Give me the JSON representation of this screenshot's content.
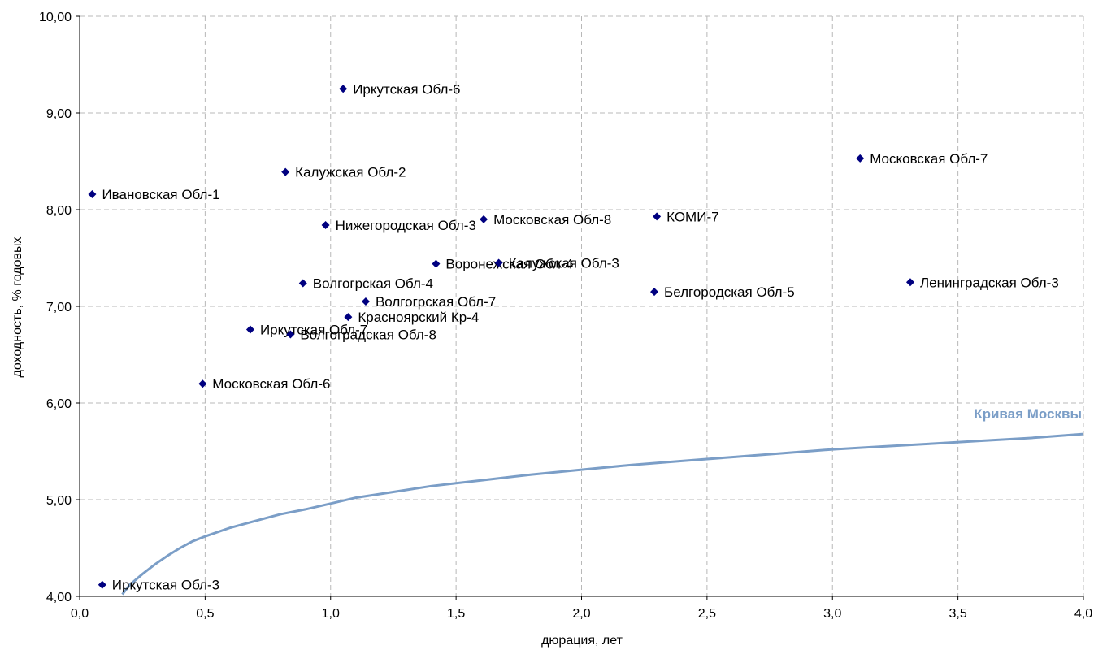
{
  "chart_data": {
    "type": "scatter",
    "xlabel": "дюрация, лет",
    "ylabel": "доходность, % годовых",
    "xlim": [
      0,
      4
    ],
    "ylim": [
      4,
      10
    ],
    "x_ticks": [
      "0,0",
      "0,5",
      "1,0",
      "1,5",
      "2,0",
      "2,5",
      "3,0",
      "3,5",
      "4,0"
    ],
    "y_ticks": [
      "4,00",
      "5,00",
      "6,00",
      "7,00",
      "8,00",
      "9,00",
      "10,00"
    ],
    "grid": true,
    "marker_color": "#000080",
    "curve_color": "#7b9ec7",
    "points": [
      {
        "label": "Иркутская Обл-6",
        "x": 1.05,
        "y": 9.25
      },
      {
        "label": "Московская Обл-7",
        "x": 3.11,
        "y": 8.53
      },
      {
        "label": "Калужская Обл-2",
        "x": 0.82,
        "y": 8.39
      },
      {
        "label": "Ивановская Обл-1",
        "x": 0.05,
        "y": 8.16
      },
      {
        "label": "Нижегородская Обл-3",
        "x": 0.98,
        "y": 7.84
      },
      {
        "label": "Московская Обл-8",
        "x": 1.61,
        "y": 7.9
      },
      {
        "label": "КОМИ-7",
        "x": 2.3,
        "y": 7.93
      },
      {
        "label": "Воронежская Обл-4",
        "x": 1.42,
        "y": 7.44
      },
      {
        "label": "Калужская Обл-3",
        "x": 1.67,
        "y": 7.45
      },
      {
        "label": "Волгогрская Обл-4",
        "x": 0.89,
        "y": 7.24
      },
      {
        "label": "Ленинградская Обл-3",
        "x": 3.31,
        "y": 7.25
      },
      {
        "label": "Белгородская Обл-5",
        "x": 2.29,
        "y": 7.15
      },
      {
        "label": "Волгогрская Обл-7",
        "x": 1.14,
        "y": 7.05
      },
      {
        "label": "Красноярский Кр-4",
        "x": 1.07,
        "y": 6.89
      },
      {
        "label": "Иркутская Обл-7",
        "x": 0.68,
        "y": 6.76
      },
      {
        "label": "Волгоградская Обл-8",
        "x": 0.84,
        "y": 6.71
      },
      {
        "label": "Московская Обл-6",
        "x": 0.49,
        "y": 6.2
      },
      {
        "label": "Иркутская Обл-3",
        "x": 0.09,
        "y": 4.12
      }
    ],
    "series": [
      {
        "name": "Кривая Москвы",
        "x": [
          0.17,
          0.2,
          0.25,
          0.3,
          0.35,
          0.4,
          0.45,
          0.5,
          0.6,
          0.7,
          0.8,
          0.9,
          1.0,
          1.1,
          1.2,
          1.3,
          1.4,
          1.5,
          1.6,
          1.8,
          2.0,
          2.2,
          2.4,
          2.6,
          2.8,
          3.0,
          3.2,
          3.4,
          3.6,
          3.8,
          4.0
        ],
        "y": [
          4.02,
          4.12,
          4.23,
          4.33,
          4.42,
          4.5,
          4.57,
          4.62,
          4.71,
          4.78,
          4.85,
          4.9,
          4.96,
          5.02,
          5.06,
          5.1,
          5.14,
          5.17,
          5.2,
          5.26,
          5.31,
          5.36,
          5.4,
          5.44,
          5.48,
          5.52,
          5.55,
          5.58,
          5.61,
          5.64,
          5.68
        ]
      }
    ]
  }
}
